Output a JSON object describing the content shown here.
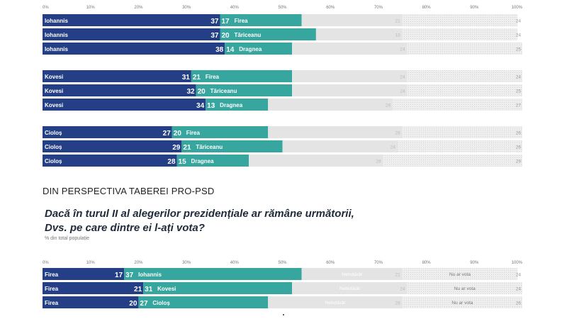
{
  "page": {
    "section_title": "DIN PERSPECTIVA TABEREI PRO-PSD",
    "question_line1": "Dacă în turul II al alegerilor prezidențiale ar rămâne următorii,",
    "question_line2": "Dvs. pe care dintre ei l-ați vota?",
    "subnote": "% din total populație"
  },
  "colors": {
    "dark_blue": "#243f86",
    "teal": "#36a69f",
    "light_gray": "#e4e4e4",
    "hatched_gray": "#eeeeee"
  },
  "chart_data": [
    {
      "type": "bar",
      "orientation": "horizontal",
      "stacked": true,
      "xlim": [
        0,
        100
      ],
      "x_ticks": [
        "0%",
        "10%",
        "20%",
        "30%",
        "40%",
        "50%",
        "60%",
        "70%",
        "80%",
        "90%",
        "100%"
      ],
      "groups": [
        {
          "rows": [
            {
              "name1": "Iohannis",
              "v1": 37,
              "name2": "Firea",
              "v2": 17,
              "v3": 21,
              "v4": 24
            },
            {
              "name1": "Iohannis",
              "v1": 37,
              "name2": "Tăriceanu",
              "v2": 20,
              "v3": 18,
              "v4": 24
            },
            {
              "name1": "Iohannis",
              "v1": 38,
              "name2": "Dragnea",
              "v2": 14,
              "v3": 24,
              "v4": 25
            }
          ]
        },
        {
          "rows": [
            {
              "name1": "Kovesi",
              "v1": 31,
              "name2": "Firea",
              "v2": 21,
              "v3": 24,
              "v4": 24
            },
            {
              "name1": "Kovesi",
              "v1": 32,
              "name2": "Tăriceanu",
              "v2": 20,
              "v3": 24,
              "v4": 25
            },
            {
              "name1": "Kovesi",
              "v1": 34,
              "name2": "Dragnea",
              "v2": 13,
              "v3": 26,
              "v4": 27
            }
          ]
        },
        {
          "rows": [
            {
              "name1": "Cioloș",
              "v1": 27,
              "name2": "Firea",
              "v2": 20,
              "v3": 28,
              "v4": 26
            },
            {
              "name1": "Cioloș",
              "v1": 29,
              "name2": "Tăriceanu",
              "v2": 21,
              "v3": 24,
              "v4": 26
            },
            {
              "name1": "Cioloș",
              "v1": 28,
              "name2": "Dragnea",
              "v2": 15,
              "v3": 28,
              "v4": 29
            }
          ]
        }
      ]
    },
    {
      "type": "bar",
      "orientation": "horizontal",
      "stacked": true,
      "xlim": [
        0,
        100
      ],
      "x_ticks": [
        "0%",
        "10%",
        "20%",
        "30%",
        "40%",
        "50%",
        "60%",
        "70%",
        "80%",
        "90%",
        "100%"
      ],
      "label3": "Nehotărât",
      "label4": "Nu ar vota",
      "groups": [
        {
          "rows": [
            {
              "name1": "Firea",
              "v1": 17,
              "name2": "Iohannis",
              "v2": 37,
              "v3": 21,
              "v4": 24
            },
            {
              "name1": "Firea",
              "v1": 21,
              "name2": "Kovesi",
              "v2": 31,
              "v3": 24,
              "v4": 24
            },
            {
              "name1": "Firea",
              "v1": 20,
              "name2": "Cioloș",
              "v2": 27,
              "v3": 28,
              "v4": 26
            }
          ]
        }
      ]
    }
  ]
}
